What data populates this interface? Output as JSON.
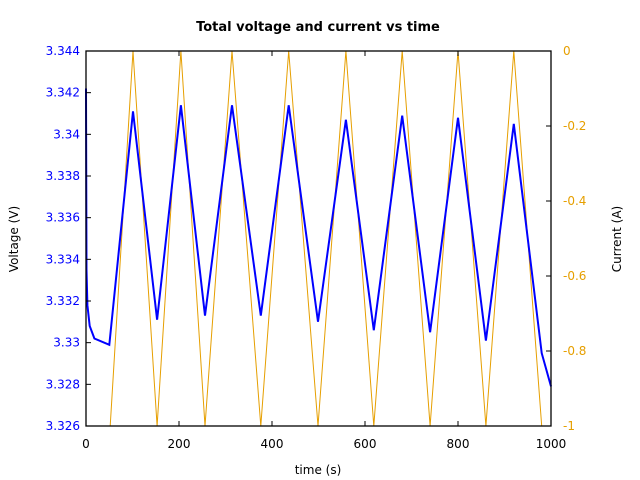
{
  "chart_data": {
    "type": "line",
    "title": "Total voltage and current vs time",
    "xlabel": "time (s)",
    "ylabel": "Voltage (V)",
    "y2label": "Current (A)",
    "xlim": [
      0,
      1000
    ],
    "ylim": [
      3.326,
      3.344
    ],
    "y2lim": [
      -1,
      0
    ],
    "xticks": [
      "0",
      "200",
      "400",
      "600",
      "800",
      "1000"
    ],
    "yticks": [
      "3.326",
      "3.328",
      "3.33",
      "3.332",
      "3.334",
      "3.336",
      "3.338",
      "3.34",
      "3.342",
      "3.344"
    ],
    "y2ticks": [
      "-1",
      "-0.8",
      "-0.6",
      "-0.4",
      "-0.2",
      "0"
    ],
    "grid": false,
    "legend": null,
    "series": [
      {
        "name": "Voltage",
        "axis": "left",
        "color": "#0000ff",
        "x": [
          0,
          1,
          3,
          8,
          18,
          50,
          101,
          153,
          204,
          256,
          314,
          376,
          436,
          499,
          559,
          619,
          680,
          740,
          800,
          860,
          920,
          980,
          1000
        ],
        "values": [
          3.3422,
          3.3335,
          3.3318,
          3.3308,
          3.3302,
          3.3299,
          3.3411,
          3.3311,
          3.3414,
          3.3313,
          3.3414,
          3.3313,
          3.3414,
          3.331,
          3.3407,
          3.3306,
          3.3409,
          3.3305,
          3.3408,
          3.3301,
          3.3405,
          3.3295,
          3.3279
        ]
      },
      {
        "name": "Current",
        "axis": "right",
        "color": "#e69f00",
        "x": [
          52,
          101,
          153,
          204,
          256,
          314,
          376,
          436,
          499,
          559,
          619,
          680,
          740,
          800,
          860,
          920,
          980
        ],
        "values": [
          -1,
          0,
          -1,
          0,
          -1,
          0,
          -1,
          0,
          -1,
          0,
          -1,
          0,
          -1,
          0,
          -1,
          0,
          -1
        ]
      }
    ]
  }
}
